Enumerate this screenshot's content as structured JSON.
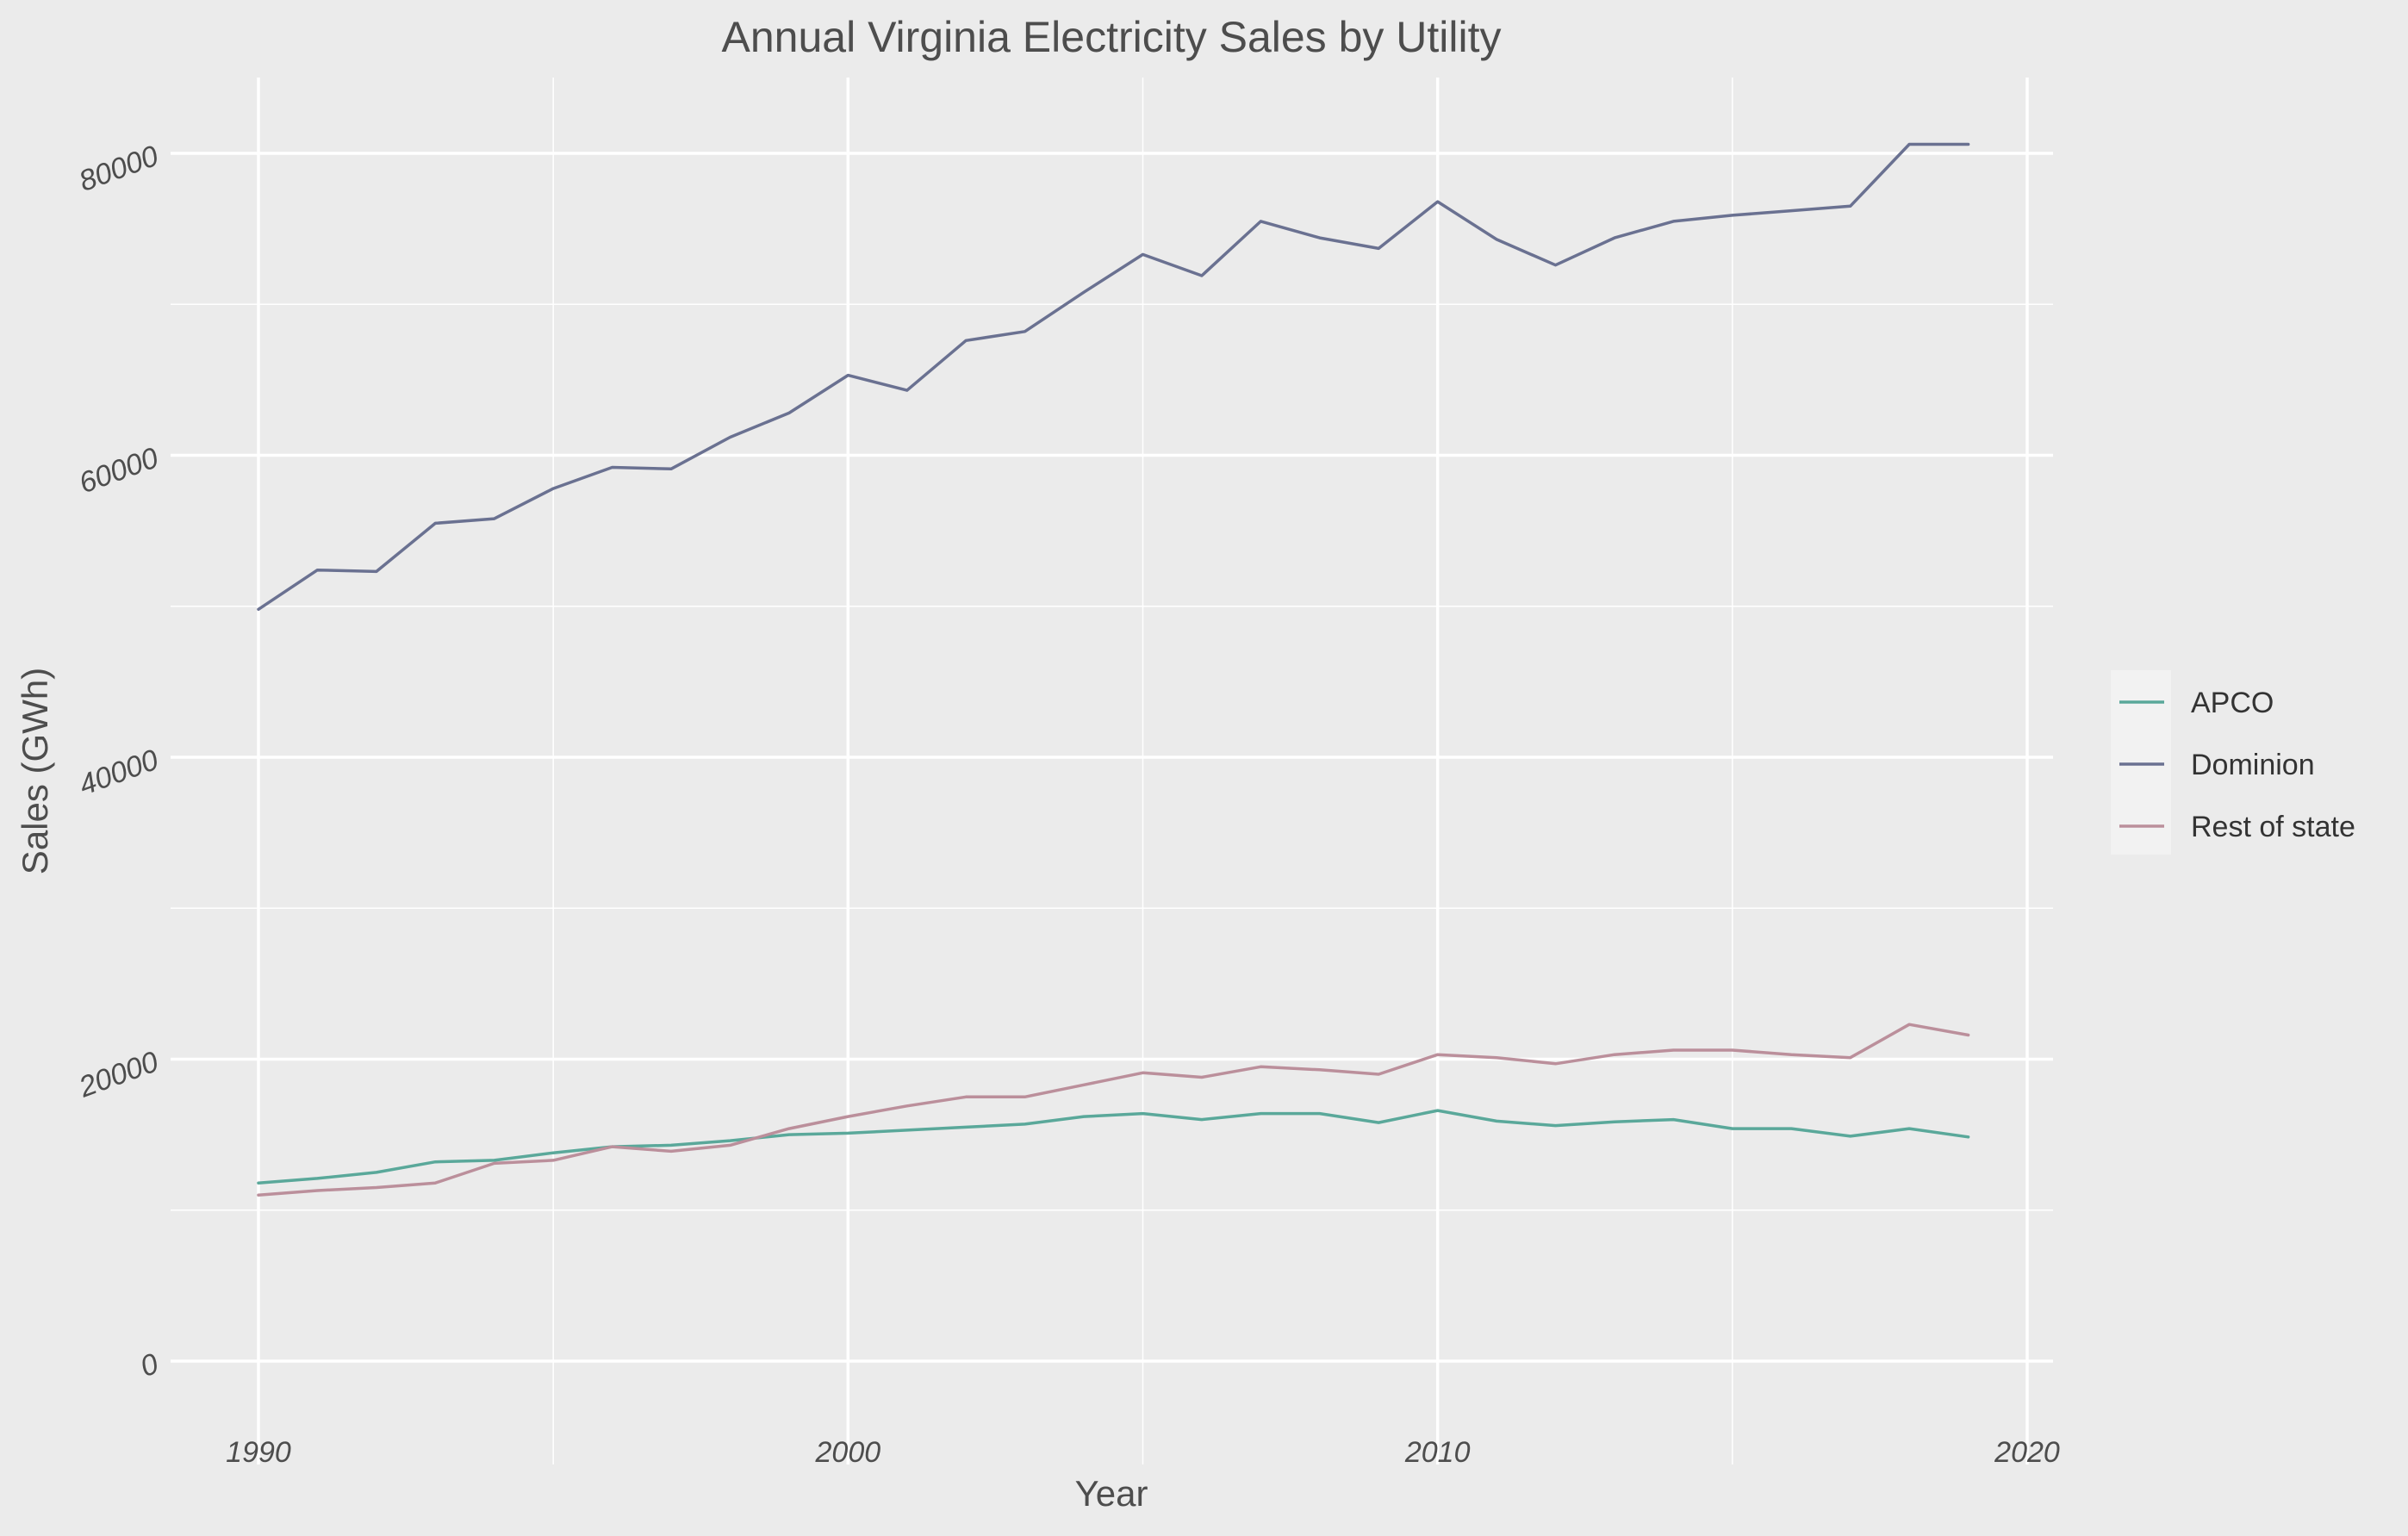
{
  "chart_data": {
    "type": "line",
    "title": "Annual Virginia Electricity Sales by Utility",
    "xlabel": "Year",
    "ylabel": "Sales (GWh)",
    "xlim": [
      1988,
      2021
    ],
    "ylim": [
      -5000,
      85000
    ],
    "x_ticks": [
      1990,
      2000,
      2010,
      2020
    ],
    "y_ticks": [
      0,
      20000,
      40000,
      60000,
      80000
    ],
    "grid": true,
    "legend_position": "right",
    "x": [
      1990,
      1991,
      1992,
      1993,
      1994,
      1995,
      1996,
      1997,
      1998,
      1999,
      2000,
      2001,
      2002,
      2003,
      2004,
      2005,
      2006,
      2007,
      2008,
      2009,
      2010,
      2011,
      2012,
      2013,
      2014,
      2015,
      2016,
      2017,
      2018,
      2019
    ],
    "series": [
      {
        "name": "APCO",
        "color": "#5aa89a",
        "values": [
          11800,
          12100,
          12500,
          13200,
          13300,
          13800,
          14200,
          14300,
          14600,
          15000,
          15100,
          15300,
          15500,
          15700,
          16200,
          16400,
          16000,
          16400,
          16400,
          15800,
          16600,
          15900,
          15600,
          15850,
          16000,
          15400,
          15400,
          14900,
          15400,
          14850
        ]
      },
      {
        "name": "Dominion",
        "color": "#6a7191",
        "values": [
          49800,
          52400,
          52300,
          55500,
          55800,
          57800,
          59200,
          59100,
          61200,
          62800,
          65300,
          64300,
          67600,
          68200,
          70800,
          73300,
          71900,
          75500,
          74400,
          73700,
          76800,
          74300,
          72600,
          74400,
          75500,
          75900,
          76200,
          76500,
          80600,
          80600
        ]
      },
      {
        "name": "Rest of state",
        "color": "#bb8f9b",
        "values": [
          11000,
          11300,
          11500,
          11800,
          13100,
          13300,
          14200,
          13900,
          14300,
          15400,
          16200,
          16900,
          17500,
          17500,
          18300,
          19100,
          18800,
          19500,
          19300,
          19000,
          20300,
          20100,
          19700,
          20300,
          20600,
          20600,
          20300,
          20100,
          22300,
          21600
        ]
      }
    ]
  }
}
